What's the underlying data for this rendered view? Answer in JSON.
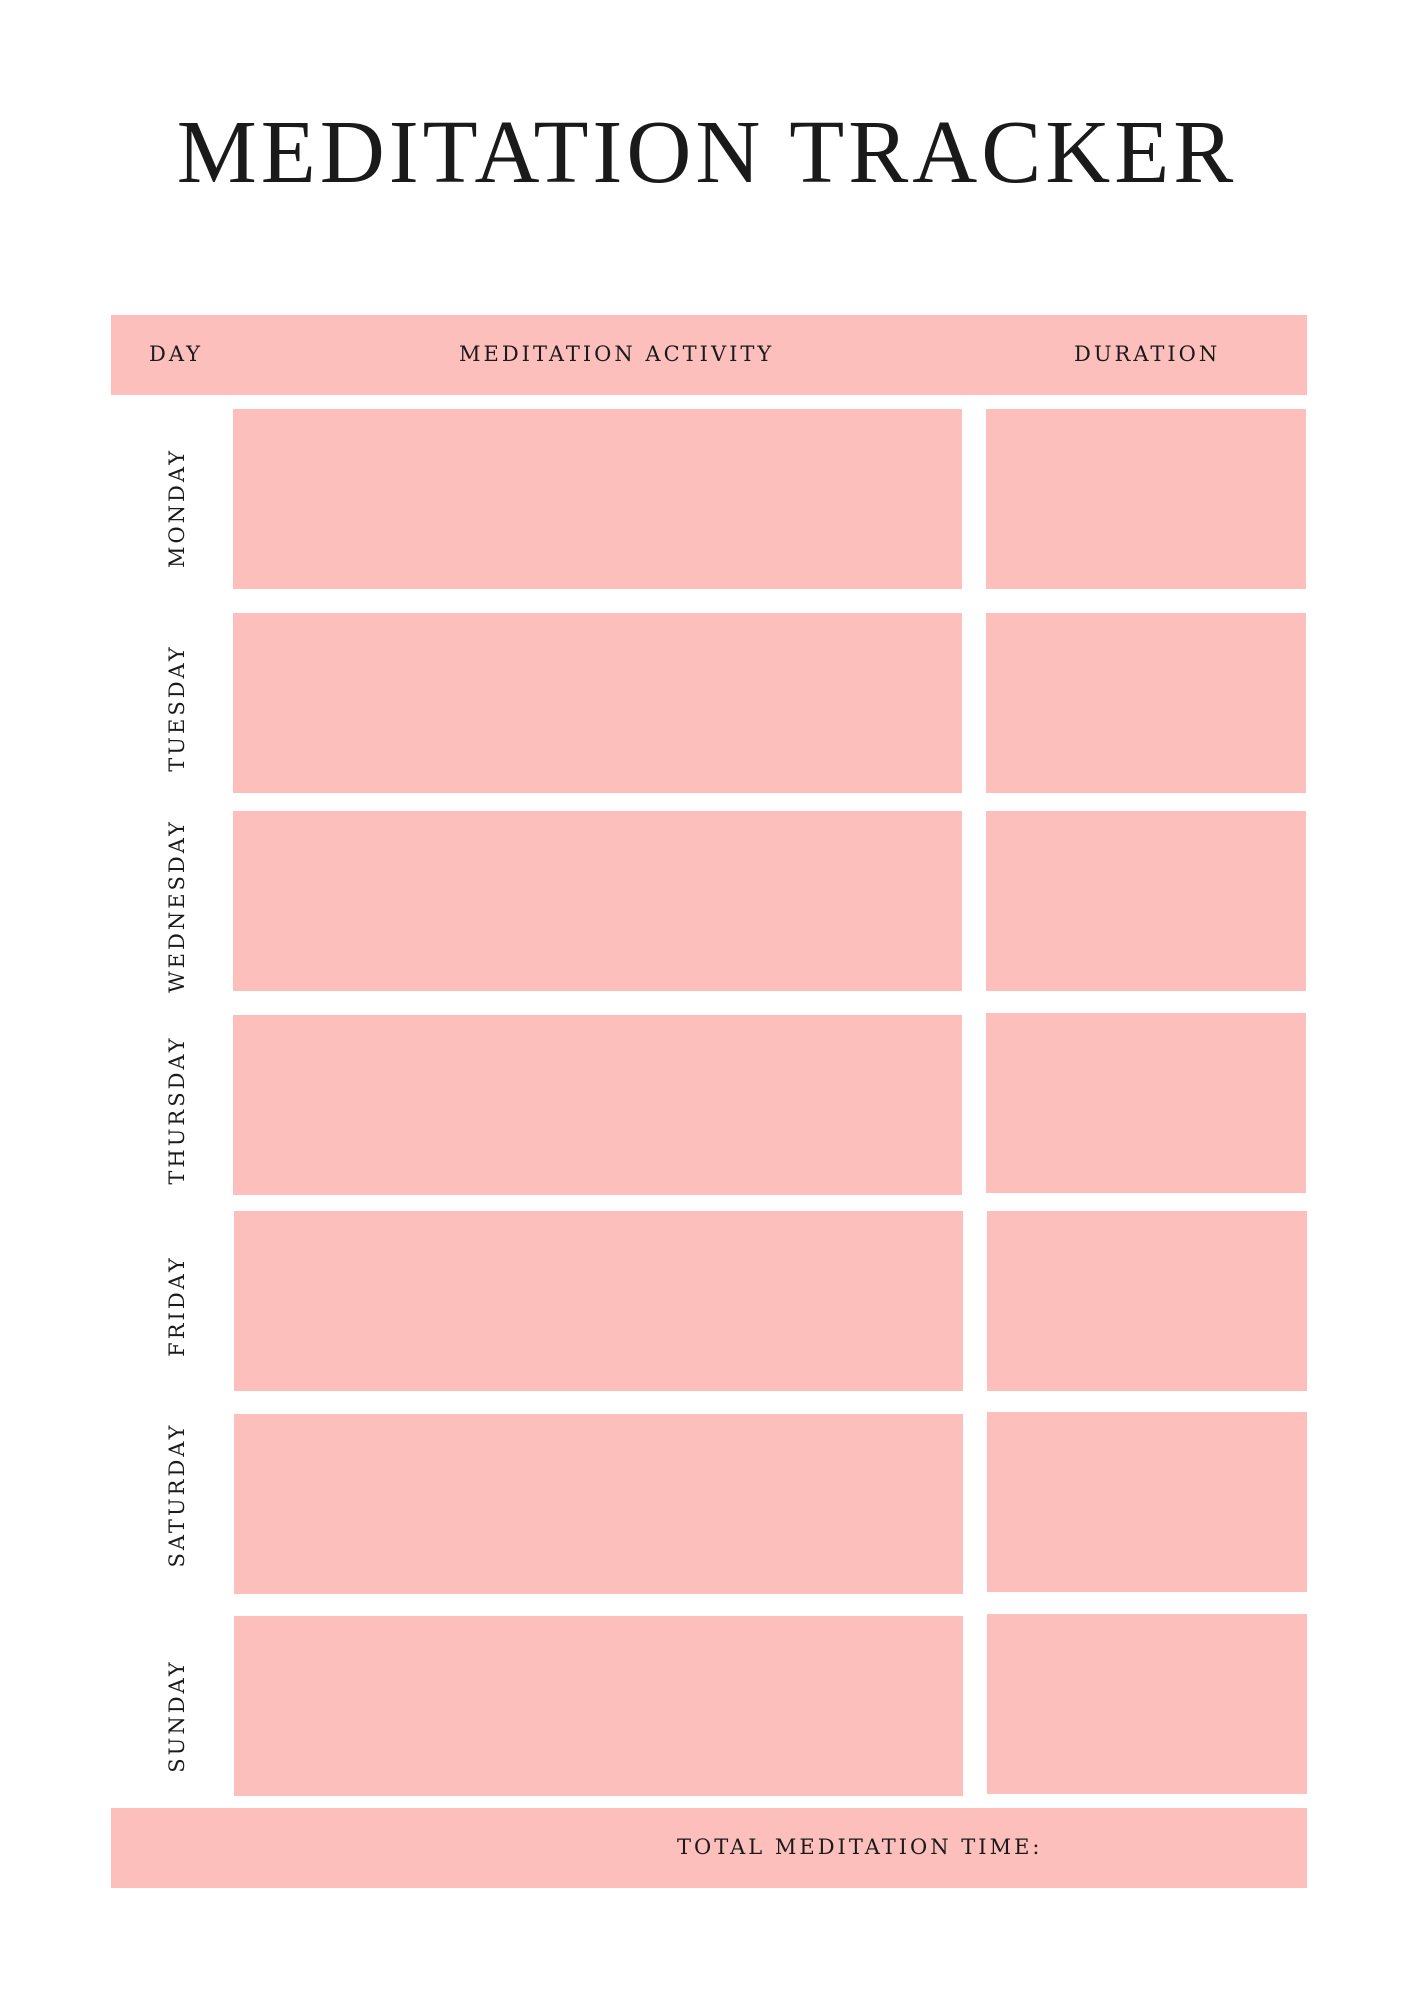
{
  "title": "MEDITATION TRACKER",
  "header": {
    "day": "DAY",
    "activity": "MEDITATION ACTIVITY",
    "duration": "DURATION"
  },
  "days": [
    "MONDAY",
    "TUESDAY",
    "WEDNESDAY",
    "THURSDAY",
    "FRIDAY",
    "SATURDAY",
    "SUNDAY"
  ],
  "footer": {
    "total_label": "TOTAL MEDITATION TIME:"
  },
  "colors": {
    "block": "#fdbfbc",
    "text": "#1a1a1a",
    "background": "#ffffff"
  }
}
